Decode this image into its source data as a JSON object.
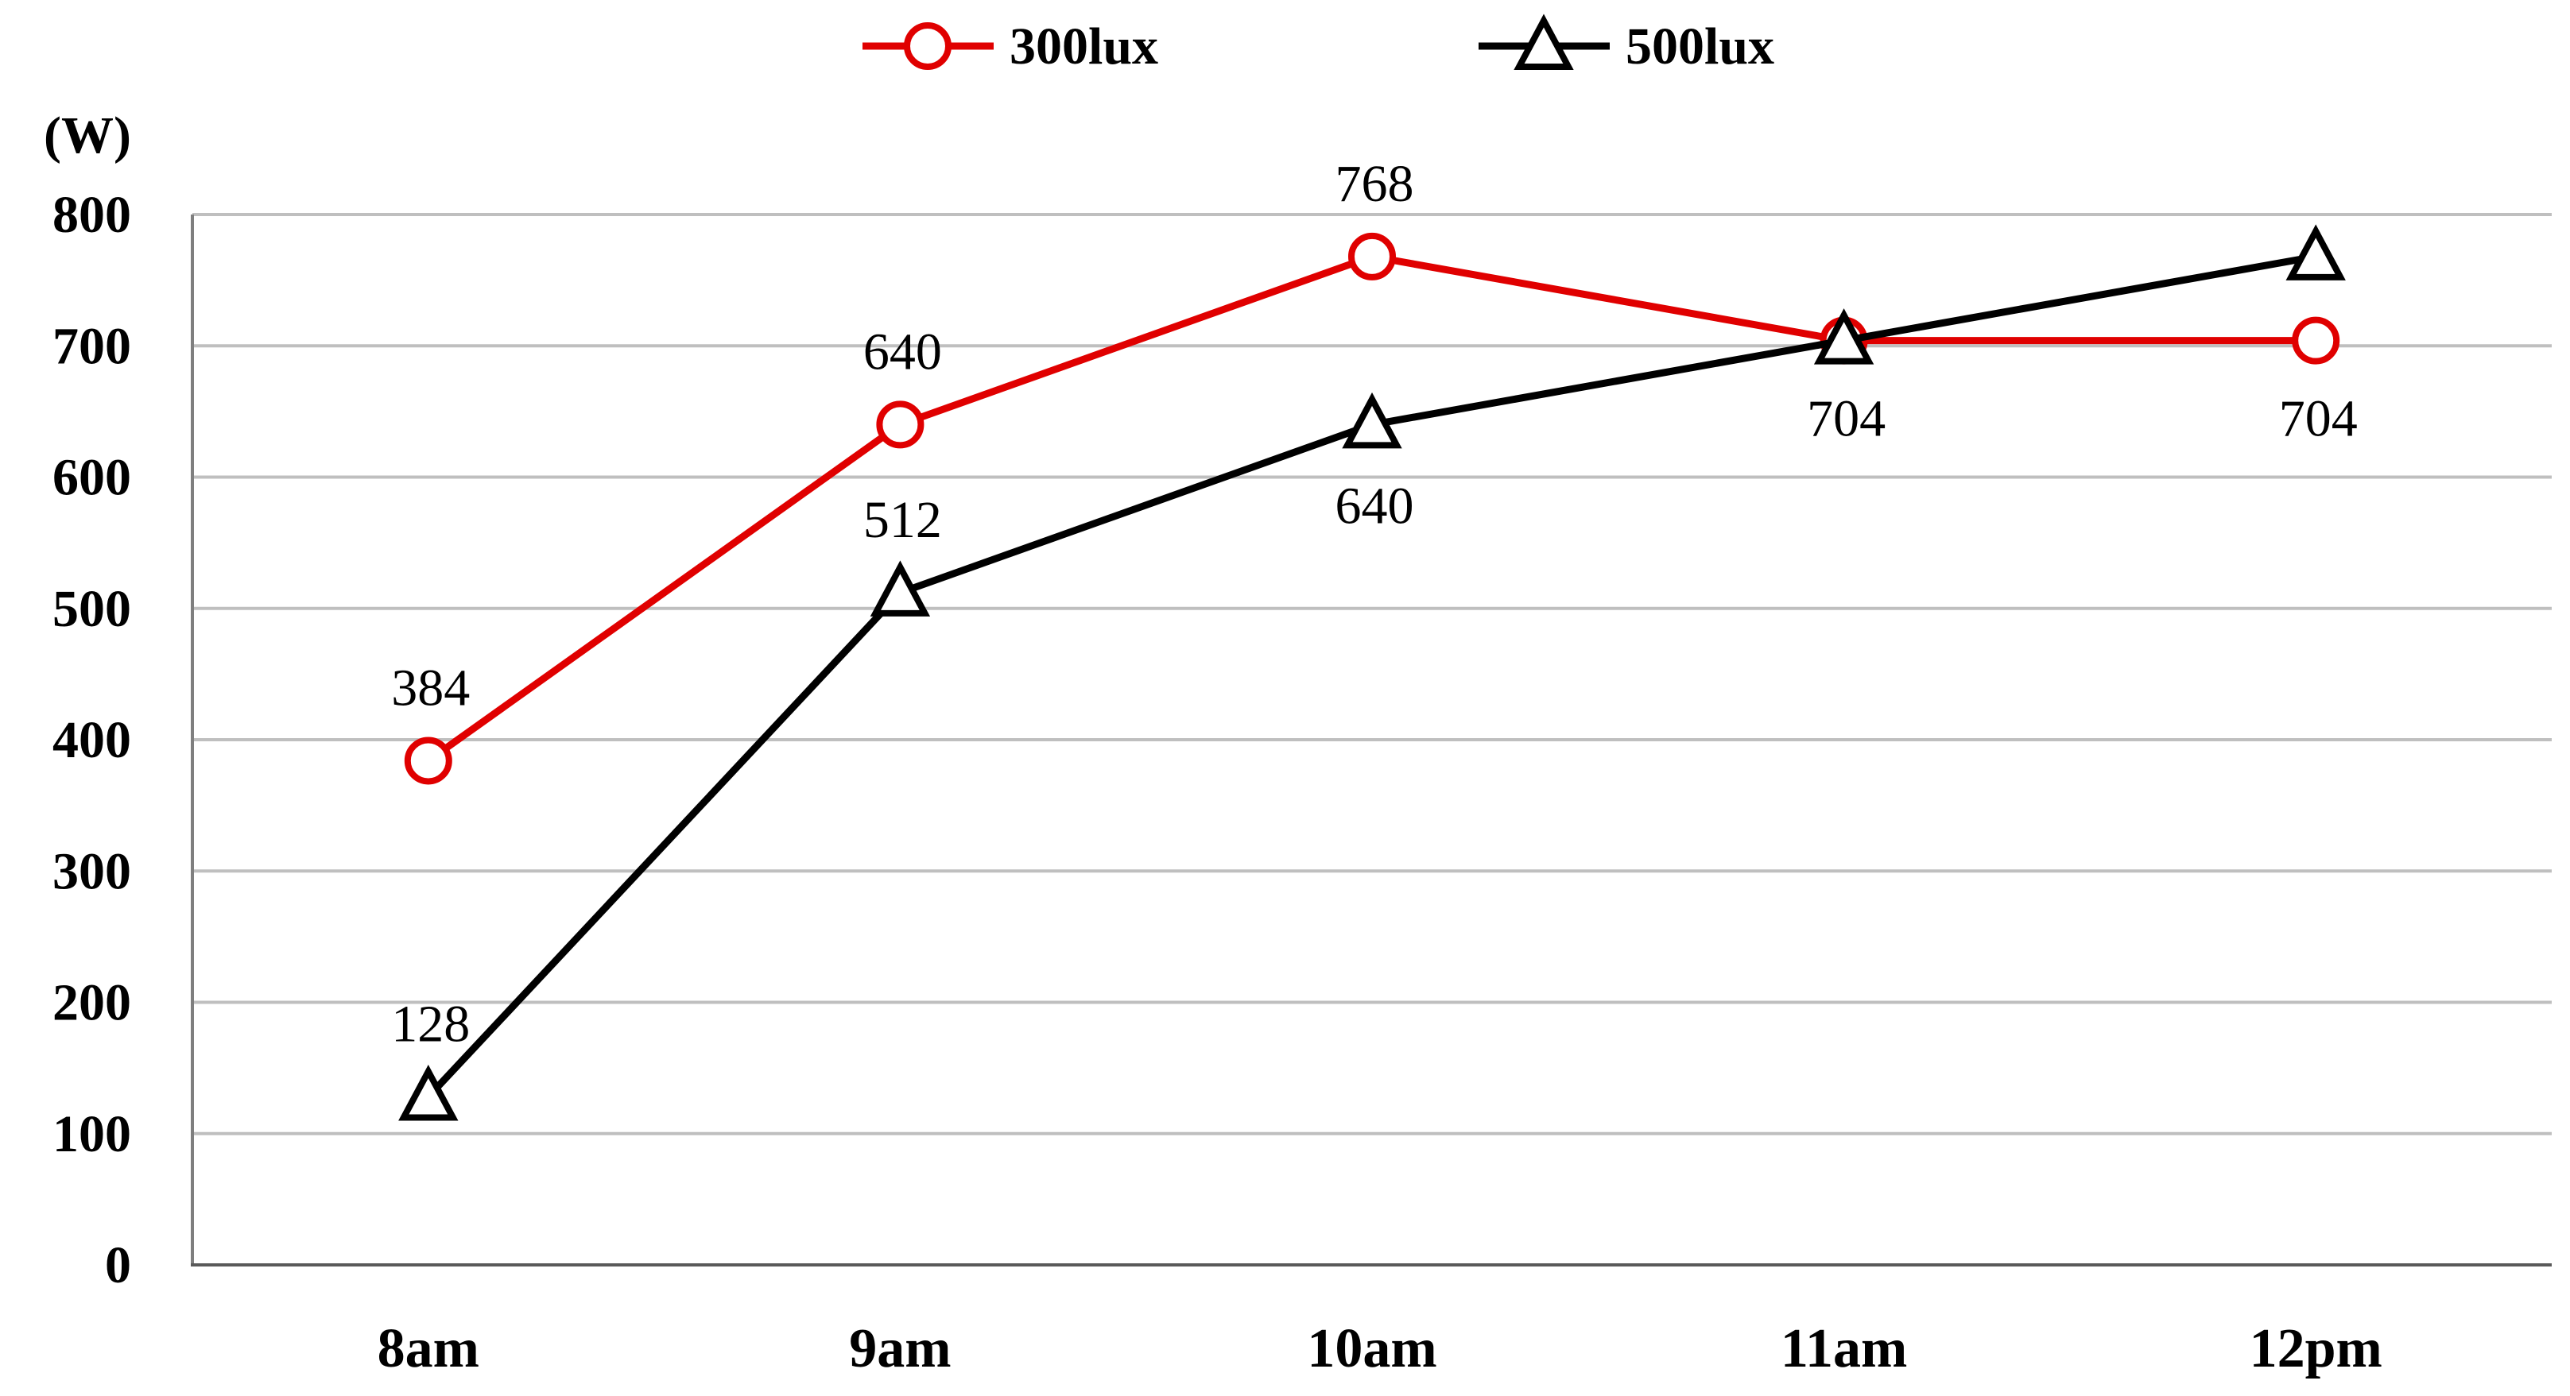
{
  "chart_data": {
    "type": "line",
    "title": "",
    "xlabel": "",
    "ylabel": "(W)",
    "ylim": [
      0,
      800
    ],
    "yticks": [
      0,
      100,
      200,
      300,
      400,
      500,
      600,
      700,
      800
    ],
    "categories": [
      "8am",
      "9am",
      "10am",
      "11am",
      "12pm"
    ],
    "grid": true,
    "legend_position": "top-center",
    "series": [
      {
        "name": "300lux",
        "color": "#e00000",
        "marker": "circle",
        "values": [
          384,
          640,
          768,
          704,
          704
        ],
        "labels": [
          "384",
          "640",
          "768",
          "",
          "704"
        ]
      },
      {
        "name": "500lux",
        "color": "#000000",
        "marker": "triangle",
        "values": [
          128,
          512,
          640,
          704,
          768
        ],
        "labels": [
          "128",
          "512",
          "640",
          "704",
          ""
        ]
      }
    ]
  }
}
